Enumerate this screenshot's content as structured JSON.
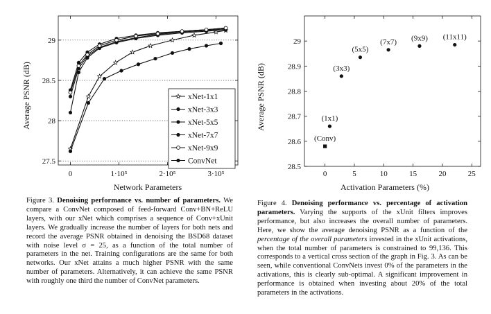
{
  "figure3": {
    "chart_data": {
      "type": "line",
      "xlabel": "Network Parameters",
      "ylabel": "Average PSNR (dB)",
      "xlim": [
        -25000,
        345000
      ],
      "ylim": [
        27.45,
        29.3
      ],
      "x_ticks": [
        0,
        100000,
        200000,
        300000
      ],
      "x_tick_labels": [
        "0",
        "1·10⁵",
        "2·10⁵",
        "3·10⁵"
      ],
      "y_ticks": [
        27.5,
        28,
        28.5,
        29
      ],
      "y_tick_labels": [
        "27.5",
        "28",
        "28.5",
        "29"
      ],
      "grid": "dotted horizontal at y ticks",
      "legend_position": "bottom-right",
      "series": [
        {
          "name": "xNet-1x1",
          "marker": "star",
          "x": [
            0,
            37000,
            60000,
            93000,
            128000,
            165000,
            210000,
            255000,
            300000,
            320000
          ],
          "y": [
            27.65,
            28.3,
            28.55,
            28.72,
            28.85,
            28.93,
            29.0,
            29.06,
            29.1,
            29.12
          ]
        },
        {
          "name": "xNet-3x3",
          "marker": "dot",
          "x": [
            0,
            17000,
            35000,
            60000,
            95000,
            135000,
            180000,
            230000,
            280000,
            320000
          ],
          "y": [
            28.38,
            28.72,
            28.85,
            28.95,
            29.02,
            29.06,
            29.09,
            29.11,
            29.13,
            29.15
          ]
        },
        {
          "name": "xNet-5x5",
          "marker": "dot",
          "x": [
            0,
            17000,
            35000,
            60000,
            95000,
            135000,
            180000,
            230000,
            280000,
            320000
          ],
          "y": [
            28.1,
            28.6,
            28.78,
            28.9,
            28.97,
            29.02,
            29.06,
            29.09,
            29.11,
            29.13
          ]
        },
        {
          "name": "xNet-7x7",
          "marker": "dot",
          "x": [
            0,
            17000,
            35000,
            60000,
            95000,
            135000,
            180000,
            230000,
            280000,
            320000
          ],
          "y": [
            28.3,
            28.65,
            28.8,
            28.91,
            28.98,
            29.03,
            29.07,
            29.1,
            29.12,
            29.14
          ]
        },
        {
          "name": "xNet-9x9",
          "marker": "circle",
          "x": [
            0,
            17000,
            35000,
            60000,
            95000,
            135000,
            180000,
            230000,
            280000,
            320000
          ],
          "y": [
            28.35,
            28.68,
            28.82,
            28.93,
            29.0,
            29.05,
            29.08,
            29.11,
            29.13,
            29.15
          ]
        },
        {
          "name": "ConvNet",
          "marker": "dot",
          "x": [
            0,
            37000,
            70000,
            105000,
            140000,
            175000,
            210000,
            245000,
            280000,
            310000
          ],
          "y": [
            27.62,
            28.22,
            28.52,
            28.62,
            28.7,
            28.77,
            28.84,
            28.89,
            28.93,
            28.96
          ]
        }
      ]
    },
    "caption": {
      "label": "Figure 3.",
      "title": "Denoising performance vs. number of parameters.",
      "body": "We compare a ConvNet composed of feed-forward Conv+BN+ReLU layers, with our xNet which comprises a sequence of Conv+xUnit layers. We gradually increase the number of layers for both nets and record the average PSNR obtained in denoising the BSD68 dataset with noise level σ = 25, as a function of the total number of parameters in the net. Training configurations are the same for both networks. Our xNet attains a much higher PSNR with the same number of parameters. Alternatively, it can achieve the same PSNR with roughly one third the number of ConvNet parameters."
    }
  },
  "figure4": {
    "chart_data": {
      "type": "scatter",
      "xlabel": "Activation Parameters (%)",
      "ylabel": "Average PSNR (dB)",
      "xlim": [
        -3.5,
        26.5
      ],
      "ylim": [
        28.5,
        29.1
      ],
      "x_ticks": [
        0,
        5,
        10,
        15,
        20,
        25
      ],
      "x_tick_labels": [
        "0",
        "5",
        "10",
        "15",
        "20",
        "25"
      ],
      "y_ticks": [
        28.5,
        28.6,
        28.7,
        28.8,
        28.9,
        29
      ],
      "y_tick_labels": [
        "28.5",
        "28.6",
        "28.7",
        "28.8",
        "28.9",
        "29"
      ],
      "points": [
        {
          "label": "(Conv)",
          "x": 0,
          "y": 28.58,
          "marker": "square"
        },
        {
          "label": "(1x1)",
          "x": 0.8,
          "y": 28.66,
          "marker": "dot"
        },
        {
          "label": "(3x3)",
          "x": 2.8,
          "y": 28.86,
          "marker": "dot"
        },
        {
          "label": "(5x5)",
          "x": 6.0,
          "y": 28.935,
          "marker": "dot"
        },
        {
          "label": "(7x7)",
          "x": 10.8,
          "y": 28.965,
          "marker": "dot"
        },
        {
          "label": "(9x9)",
          "x": 16.1,
          "y": 28.98,
          "marker": "dot"
        },
        {
          "label": "(11x11)",
          "x": 22.1,
          "y": 28.985,
          "marker": "dot"
        }
      ]
    },
    "caption": {
      "label": "Figure 4.",
      "title": "Denoising performance vs. percentage of activation parameters.",
      "body1": "Varying the supports of the xUnit filters improves performance, but also increases the overall number of parameters. Here, we show the average denoising PSNR as a function of the",
      "body_italic": "percentage of the overall parameters",
      "body2": "invested in the xUnit activations, when the total number of parameters is constrained to 99,136. This corresponds to a vertical cross section of the graph in Fig. 3. As can be seen, while conventional ConvNets invest 0% of the parameters in the activations, this is clearly sub-optimal. A significant improvement in performance is obtained when investing about 20% of the total parameters in the activations."
    }
  }
}
